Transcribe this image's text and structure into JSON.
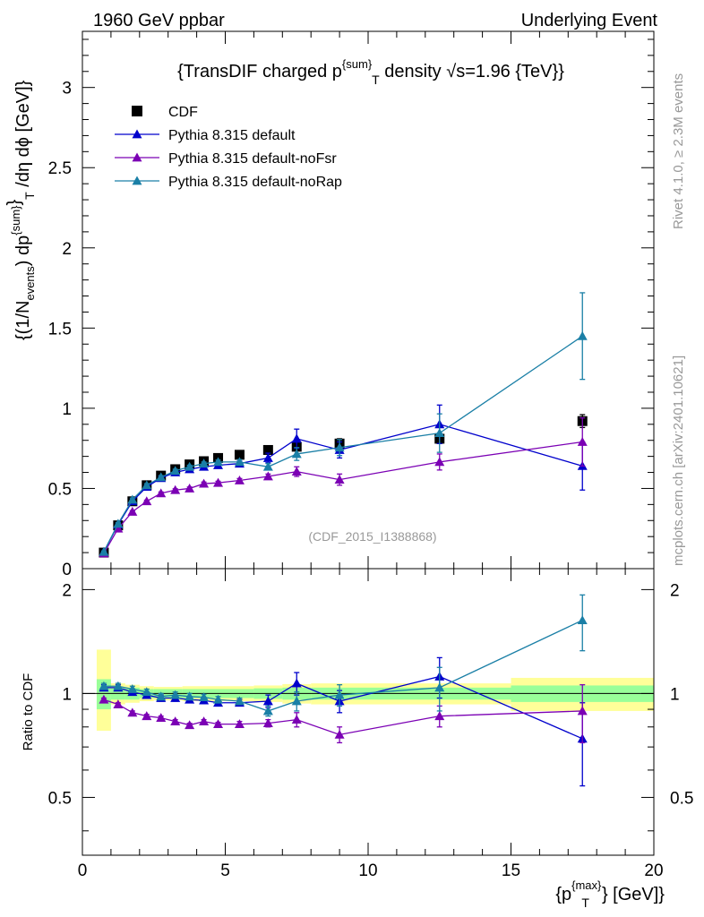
{
  "header": {
    "left": "1960 GeV ppbar",
    "right": "Underlying Event"
  },
  "side_labels": {
    "rivet": "Rivet 4.1.0, ≥ 2.3M events",
    "mcplots": "mcplots.cern.ch [arXiv:2401.10621]"
  },
  "colors": {
    "cdf": "#000000",
    "default": "#0000cc",
    "nofsr": "#7b00b4",
    "norap": "#1a7fa6",
    "band_inner": "#99ff99",
    "band_outer": "#ffff99"
  },
  "chart_data": [
    {
      "type": "scatter",
      "panel": "main",
      "title": "{TransDIF charged p^{sum}_T density √s=1.96 {TeV}}",
      "title_parts": {
        "a": "{TransDIF charged p",
        "sup": "{sum}",
        "sub": "T",
        "b": " density ",
        "sqrt": "√",
        "c": "s=1.96 {TeV}}"
      },
      "ylabel": "{(1/N_events) dp^{sum}_T /dη dϕ [GeV]}",
      "ylabel_parts": {
        "a": "{(1/N",
        "sub1": "events",
        "b": ") dp",
        "sup": "{sum}",
        "c": "}",
        "sub2": "T",
        "d": " /dη  dϕ [GeV]}"
      },
      "xlim": [
        0,
        20
      ],
      "ylim": [
        0,
        3.35
      ],
      "yticks": [
        0,
        0.5,
        1,
        1.5,
        2,
        2.5,
        3
      ],
      "ytick_labels": [
        "0",
        "0.5",
        "1",
        "1.5",
        "2",
        "2.5",
        "3"
      ],
      "watermark": "(CDF_2015_I1388868)",
      "legend_position": "top-left",
      "series": [
        {
          "name": "CDF",
          "key": "cdf",
          "marker": "square",
          "x": [
            0.75,
            1.25,
            1.75,
            2.25,
            2.75,
            3.25,
            3.75,
            4.25,
            4.75,
            5.5,
            6.5,
            7.5,
            9.0,
            12.5,
            17.5
          ],
          "y": [
            0.1,
            0.27,
            0.42,
            0.52,
            0.58,
            0.62,
            0.65,
            0.67,
            0.69,
            0.71,
            0.74,
            0.76,
            0.78,
            0.81,
            0.92
          ],
          "err": [
            0.01,
            0.01,
            0.01,
            0.01,
            0.01,
            0.01,
            0.01,
            0.01,
            0.01,
            0.01,
            0.02,
            0.02,
            0.03,
            0.03,
            0.04
          ]
        },
        {
          "name": "Pythia 8.315 default",
          "key": "default",
          "marker": "triangle",
          "x": [
            0.75,
            1.25,
            1.75,
            2.25,
            2.75,
            3.25,
            3.75,
            4.25,
            4.75,
            5.5,
            6.5,
            7.5,
            9.0,
            12.5,
            17.5
          ],
          "y": [
            0.105,
            0.275,
            0.42,
            0.51,
            0.565,
            0.6,
            0.62,
            0.635,
            0.645,
            0.655,
            0.69,
            0.81,
            0.74,
            0.9,
            0.64
          ],
          "err": [
            0.005,
            0.007,
            0.01,
            0.01,
            0.01,
            0.01,
            0.01,
            0.01,
            0.01,
            0.015,
            0.03,
            0.06,
            0.05,
            0.12,
            0.15
          ]
        },
        {
          "name": "Pythia 8.315 default-noFsr",
          "key": "nofsr",
          "marker": "triangle",
          "x": [
            0.75,
            1.25,
            1.75,
            2.25,
            2.75,
            3.25,
            3.75,
            4.25,
            4.75,
            5.5,
            6.5,
            7.5,
            9.0,
            12.5,
            17.5
          ],
          "y": [
            0.095,
            0.25,
            0.355,
            0.42,
            0.47,
            0.49,
            0.5,
            0.53,
            0.535,
            0.55,
            0.575,
            0.605,
            0.555,
            0.665,
            0.79
          ],
          "err": [
            0.004,
            0.005,
            0.006,
            0.007,
            0.008,
            0.008,
            0.009,
            0.01,
            0.01,
            0.012,
            0.015,
            0.03,
            0.035,
            0.05,
            0.15
          ]
        },
        {
          "name": "Pythia 8.315 default-noRap",
          "key": "norap",
          "marker": "triangle",
          "x": [
            0.75,
            1.25,
            1.75,
            2.25,
            2.75,
            3.25,
            3.75,
            4.25,
            4.75,
            5.5,
            6.5,
            7.5,
            9.0,
            12.5,
            17.5
          ],
          "y": [
            0.105,
            0.28,
            0.43,
            0.52,
            0.57,
            0.61,
            0.635,
            0.655,
            0.665,
            0.665,
            0.635,
            0.715,
            0.755,
            0.845,
            1.45
          ],
          "err": [
            0.005,
            0.007,
            0.01,
            0.01,
            0.01,
            0.01,
            0.01,
            0.01,
            0.012,
            0.015,
            0.02,
            0.04,
            0.05,
            0.12,
            0.27
          ]
        }
      ]
    },
    {
      "type": "scatter",
      "panel": "ratio",
      "ylabel": "Ratio to CDF",
      "xlabel": "{p_T^{max}} [GeV]}",
      "xlabel_parts": {
        "a": "{p",
        "sup": "{max}",
        "sub": "T",
        "b": "} [GeV]}"
      },
      "xlim": [
        0,
        20
      ],
      "ylim": [
        0.34,
        2.3
      ],
      "reference_line": 1,
      "yticks": [
        0.5,
        1,
        2
      ],
      "ytick_labels": [
        "0.5",
        "1",
        "2"
      ],
      "xticks": [
        0,
        5,
        10,
        15,
        20
      ],
      "xtick_labels": [
        "0",
        "5",
        "10",
        "15",
        "20"
      ],
      "bands": [
        {
          "x0": 0.5,
          "x1": 1.0,
          "inner": [
            0.9,
            1.1
          ],
          "outer": [
            0.78,
            1.34
          ]
        },
        {
          "x0": 1.0,
          "x1": 1.5,
          "inner": [
            0.96,
            1.04
          ],
          "outer": [
            0.93,
            1.07
          ]
        },
        {
          "x0": 1.5,
          "x1": 2.0,
          "inner": [
            0.96,
            1.04
          ],
          "outer": [
            0.94,
            1.06
          ]
        },
        {
          "x0": 2.0,
          "x1": 2.5,
          "inner": [
            0.97,
            1.03
          ],
          "outer": [
            0.95,
            1.05
          ]
        },
        {
          "x0": 2.5,
          "x1": 3.5,
          "inner": [
            0.97,
            1.03
          ],
          "outer": [
            0.955,
            1.045
          ]
        },
        {
          "x0": 3.5,
          "x1": 6.0,
          "inner": [
            0.97,
            1.03
          ],
          "outer": [
            0.95,
            1.05
          ]
        },
        {
          "x0": 6.0,
          "x1": 7.0,
          "inner": [
            0.965,
            1.035
          ],
          "outer": [
            0.945,
            1.055
          ]
        },
        {
          "x0": 7.0,
          "x1": 8.0,
          "inner": [
            0.96,
            1.04
          ],
          "outer": [
            0.935,
            1.065
          ]
        },
        {
          "x0": 8.0,
          "x1": 10.0,
          "inner": [
            0.96,
            1.04
          ],
          "outer": [
            0.93,
            1.07
          ]
        },
        {
          "x0": 10.0,
          "x1": 15.0,
          "inner": [
            0.96,
            1.04
          ],
          "outer": [
            0.93,
            1.07
          ]
        },
        {
          "x0": 15.0,
          "x1": 20.0,
          "inner": [
            0.945,
            1.055
          ],
          "outer": [
            0.89,
            1.11
          ]
        }
      ],
      "series": [
        {
          "name": "Pythia 8.315 default",
          "key": "default",
          "x": [
            0.75,
            1.25,
            1.75,
            2.25,
            2.75,
            3.25,
            3.75,
            4.25,
            4.75,
            5.5,
            6.5,
            7.5,
            9.0,
            12.5,
            17.5
          ],
          "y": [
            1.04,
            1.04,
            1.01,
            0.99,
            0.97,
            0.97,
            0.96,
            0.955,
            0.94,
            0.94,
            0.95,
            1.07,
            0.95,
            1.12,
            0.74
          ],
          "err": [
            0.02,
            0.02,
            0.02,
            0.02,
            0.02,
            0.02,
            0.02,
            0.02,
            0.02,
            0.02,
            0.04,
            0.08,
            0.07,
            0.15,
            0.2
          ]
        },
        {
          "name": "Pythia 8.315 default-noFsr",
          "key": "nofsr",
          "x": [
            0.75,
            1.25,
            1.75,
            2.25,
            2.75,
            3.25,
            3.75,
            4.25,
            4.75,
            5.5,
            6.5,
            7.5,
            9.0,
            12.5,
            17.5
          ],
          "y": [
            0.96,
            0.93,
            0.88,
            0.86,
            0.85,
            0.83,
            0.81,
            0.83,
            0.815,
            0.815,
            0.82,
            0.84,
            0.76,
            0.86,
            0.89
          ],
          "err": [
            0.01,
            0.01,
            0.01,
            0.01,
            0.01,
            0.01,
            0.01,
            0.01,
            0.01,
            0.015,
            0.02,
            0.04,
            0.04,
            0.06,
            0.17
          ]
        },
        {
          "name": "Pythia 8.315 default-noRap",
          "key": "norap",
          "x": [
            0.75,
            1.25,
            1.75,
            2.25,
            2.75,
            3.25,
            3.75,
            4.25,
            4.75,
            5.5,
            6.5,
            7.5,
            9.0,
            12.5,
            17.5
          ],
          "y": [
            1.05,
            1.05,
            1.03,
            1.01,
            0.98,
            0.99,
            0.98,
            0.975,
            0.96,
            0.95,
            0.89,
            0.95,
            0.99,
            1.04,
            1.63
          ],
          "err": [
            0.02,
            0.02,
            0.02,
            0.02,
            0.02,
            0.02,
            0.02,
            0.02,
            0.02,
            0.02,
            0.03,
            0.06,
            0.07,
            0.15,
            0.3
          ]
        }
      ]
    }
  ]
}
